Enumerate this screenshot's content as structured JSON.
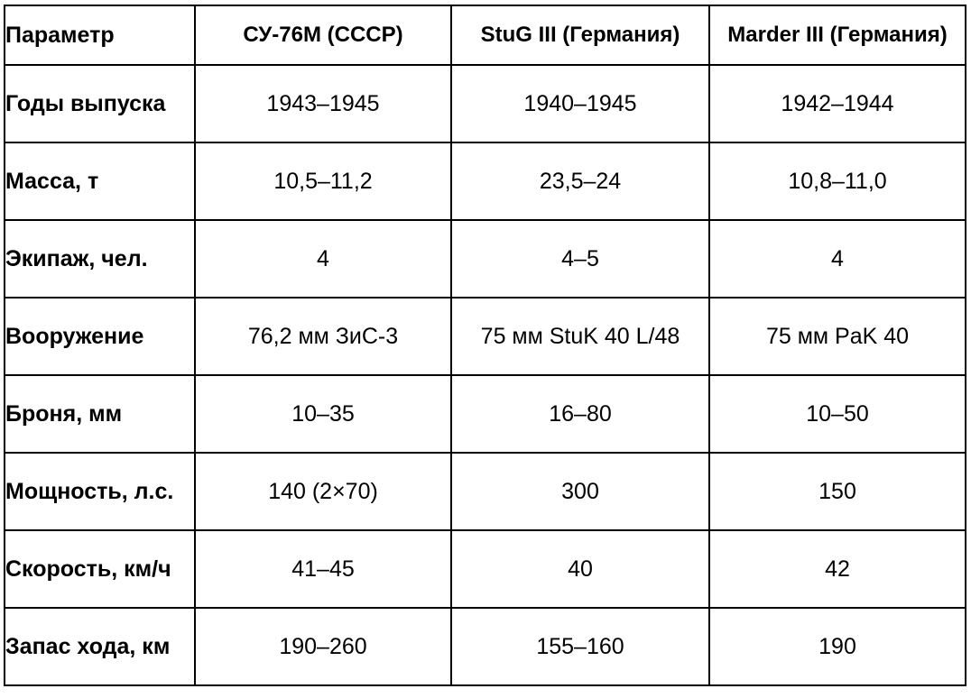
{
  "chart_data": {
    "type": "table",
    "columns": [
      "Параметр",
      "СУ-76М (СССР)",
      "StuG III (Германия)",
      "Marder III (Германия)"
    ],
    "rows": [
      {
        "label": "Годы выпуска",
        "values": [
          "1943–1945",
          "1940–1945",
          "1942–1944"
        ]
      },
      {
        "label": "Масса, т",
        "values": [
          "10,5–11,2",
          "23,5–24",
          "10,8–11,0"
        ]
      },
      {
        "label": "Экипаж, чел.",
        "values": [
          "4",
          "4–5",
          "4"
        ]
      },
      {
        "label": "Вооружение",
        "values": [
          "76,2 мм ЗиС-3",
          "75 мм StuK 40 L/48",
          "75 мм PaK 40"
        ]
      },
      {
        "label": "Броня, мм",
        "values": [
          "10–35",
          "16–80",
          "10–50"
        ]
      },
      {
        "label": "Мощность, л.с.",
        "values": [
          "140 (2×70)",
          "300",
          "150"
        ]
      },
      {
        "label": "Скорость, км/ч",
        "values": [
          "41–45",
          "40",
          "42"
        ]
      },
      {
        "label": "Запас хода, км",
        "values": [
          "190–260",
          "155–160",
          "190"
        ]
      }
    ]
  },
  "colors": {
    "border": "#000000",
    "text": "#000000",
    "background": "#ffffff"
  }
}
